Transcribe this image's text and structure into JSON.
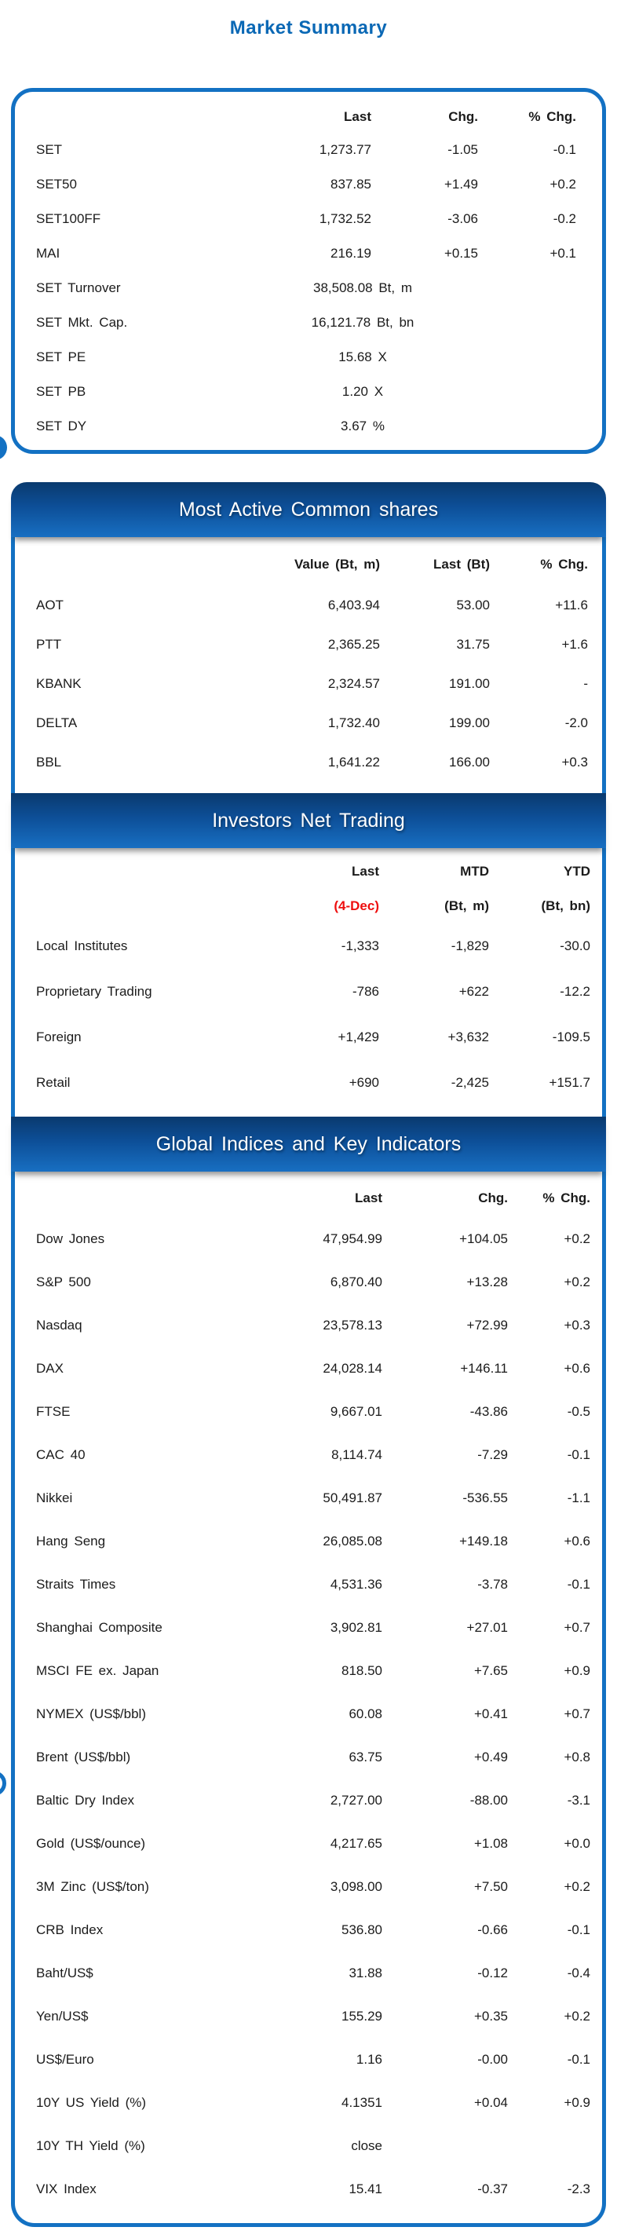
{
  "page": {
    "title": "Market Summary"
  },
  "market_summary": {
    "headers": [
      "Last",
      "Chg.",
      "% Chg."
    ],
    "rows": [
      {
        "label": "SET",
        "last": "1,273.77",
        "chg": "-1.05",
        "pchg": "-0.1"
      },
      {
        "label": "SET50",
        "last": "837.85",
        "chg": "+1.49",
        "pchg": "+0.2"
      },
      {
        "label": "SET100FF",
        "last": "1,732.52",
        "chg": "-3.06",
        "pchg": "-0.2"
      },
      {
        "label": "MAI",
        "last": "216.19",
        "chg": "+0.15",
        "pchg": "+0.1"
      },
      {
        "label": "SET Turnover",
        "last": "38,508.08 Bt, m",
        "chg": "",
        "pchg": "",
        "unit": true
      },
      {
        "label": "SET Mkt. Cap.",
        "last": "16,121.78 Bt, bn",
        "chg": "",
        "pchg": "",
        "unit": true
      },
      {
        "label": "SET PE",
        "last": "15.68 X",
        "chg": "",
        "pchg": "",
        "unit": true
      },
      {
        "label": "SET PB",
        "last": "1.20 X",
        "chg": "",
        "pchg": "",
        "unit": true
      },
      {
        "label": "SET DY",
        "last": "3.67 %",
        "chg": "",
        "pchg": "",
        "unit": true
      }
    ]
  },
  "most_active": {
    "banner": "Most Active Common shares",
    "headers": [
      "Value (Bt, m)",
      "Last (Bt)",
      "% Chg."
    ],
    "rows": [
      [
        "AOT",
        "6,403.94",
        "53.00",
        "+11.6"
      ],
      [
        "PTT",
        "2,365.25",
        "31.75",
        "+1.6"
      ],
      [
        "KBANK",
        "2,324.57",
        "191.00",
        "-"
      ],
      [
        "DELTA",
        "1,732.40",
        "199.00",
        "-2.0"
      ],
      [
        "BBL",
        "1,641.22",
        "166.00",
        "+0.3"
      ]
    ]
  },
  "investors_net_trading": {
    "banner": "Investors Net Trading",
    "headers": [
      "Last",
      "MTD",
      "YTD"
    ],
    "subheaders": [
      "(4-Dec)",
      "(Bt, m)",
      "(Bt, bn)"
    ],
    "rows": [
      [
        "Local Institutes",
        "-1,333",
        "-1,829",
        "-30.0"
      ],
      [
        "Proprietary Trading",
        "-786",
        "+622",
        "-12.2"
      ],
      [
        "Foreign",
        "+1,429",
        "+3,632",
        "-109.5"
      ],
      [
        "Retail",
        "+690",
        "-2,425",
        "+151.7"
      ]
    ]
  },
  "global_indices": {
    "banner": "Global Indices and Key Indicators",
    "headers": [
      "Last",
      "Chg.",
      "% Chg."
    ],
    "rows": [
      [
        "Dow Jones",
        "47,954.99",
        "+104.05",
        "+0.2"
      ],
      [
        "S&P 500",
        "6,870.40",
        "+13.28",
        "+0.2"
      ],
      [
        "Nasdaq",
        "23,578.13",
        "+72.99",
        "+0.3"
      ],
      [
        "DAX",
        "24,028.14",
        "+146.11",
        "+0.6"
      ],
      [
        "FTSE",
        "9,667.01",
        "-43.86",
        "-0.5"
      ],
      [
        "CAC 40",
        "8,114.74",
        "-7.29",
        "-0.1"
      ],
      [
        "Nikkei",
        "50,491.87",
        "-536.55",
        "-1.1"
      ],
      [
        "Hang Seng",
        "26,085.08",
        "+149.18",
        "+0.6"
      ],
      [
        "Straits Times",
        "4,531.36",
        "-3.78",
        "-0.1"
      ],
      [
        "Shanghai Composite",
        "3,902.81",
        "+27.01",
        "+0.7"
      ],
      [
        "MSCI FE ex. Japan",
        "818.50",
        "+7.65",
        "+0.9"
      ],
      [
        "NYMEX (US$/bbl)",
        "60.08",
        "+0.41",
        "+0.7"
      ],
      [
        "Brent (US$/bbl)",
        "63.75",
        "+0.49",
        "+0.8"
      ],
      [
        "Baltic Dry Index",
        "2,727.00",
        "-88.00",
        "-3.1"
      ],
      [
        "Gold (US$/ounce)",
        "4,217.65",
        "+1.08",
        "+0.0"
      ],
      [
        "3M Zinc (US$/ton)",
        "3,098.00",
        "+7.50",
        "+0.2"
      ],
      [
        "CRB Index",
        "536.80",
        "-0.66",
        "-0.1"
      ],
      [
        "Baht/US$",
        "31.88",
        "-0.12",
        "-0.4"
      ],
      [
        "Yen/US$",
        "155.29",
        "+0.35",
        "+0.2"
      ],
      [
        "US$/Euro",
        "1.16",
        "-0.00",
        "-0.1"
      ],
      [
        "10Y US Yield (%)",
        "4.1351",
        "+0.04",
        "+0.9"
      ],
      [
        "10Y TH Yield (%)",
        "close",
        "",
        ""
      ],
      [
        "VIX Index",
        "15.41",
        "-0.37",
        "-2.3"
      ]
    ]
  },
  "colors": {
    "accent_blue": "#1371c3",
    "title_blue": "#0a68b5",
    "banner_gradient_top": "#0a3a6e",
    "banner_gradient_bottom": "#186fc2",
    "alert_red": "#ee0f0f"
  }
}
